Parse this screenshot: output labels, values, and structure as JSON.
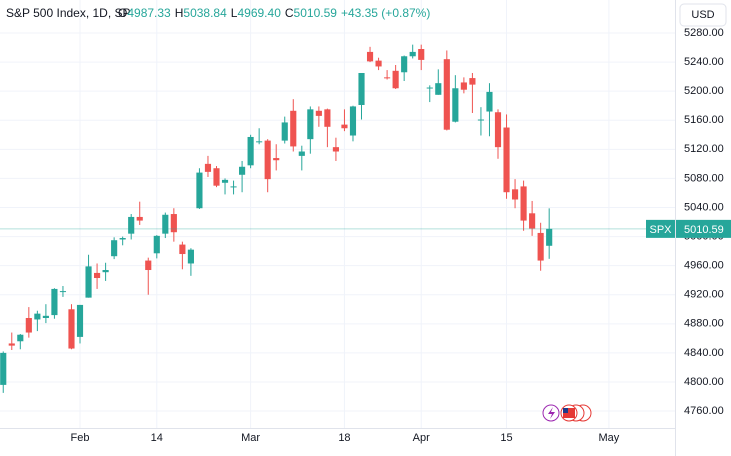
{
  "chart_data": {
    "type": "candlestick",
    "header": {
      "title": "S&P 500 Index, 1D, SP",
      "open_prefix": "O",
      "open": "4987.33",
      "high_prefix": "H",
      "high": "5038.84",
      "low_prefix": "L",
      "low": "4969.40",
      "close_prefix": "C",
      "close": "5010.59",
      "change": "+43.35 (+0.87%)"
    },
    "currency": "USD",
    "categories": [
      null,
      null,
      null,
      null,
      null,
      null,
      null,
      null,
      null,
      null,
      null,
      null,
      null,
      null,
      null,
      null,
      null,
      null,
      null,
      null,
      null,
      null,
      null,
      null,
      null,
      null,
      null,
      null,
      null,
      null,
      null,
      null,
      null,
      null,
      null,
      null,
      null,
      null,
      null,
      null,
      null,
      null,
      null,
      null,
      null,
      null,
      null,
      null,
      null,
      null,
      null,
      null,
      null,
      null,
      null,
      null,
      null,
      null,
      null,
      null,
      null,
      null,
      null,
      null,
      null
    ],
    "series": [
      {
        "name": "SPX",
        "up_color": "#26a69a",
        "down_color": "#ef5350",
        "open": [
          4796,
          4853,
          4856,
          4888,
          4886,
          4888,
          4892,
          4925,
          4900,
          4862,
          4916,
          4950,
          4951,
          4973,
          4996,
          5004,
          5027,
          4967,
          4977,
          5004,
          5031,
          4989,
          4963,
          5039,
          5100,
          5094,
          5074,
          5068,
          5085,
          5098,
          5131,
          5132,
          5108,
          5132,
          5173,
          5111,
          5134,
          5173,
          5175,
          5123,
          5154,
          5139,
          5181,
          5254,
          5242,
          5219,
          5228,
          5226,
          5248,
          5258,
          5204,
          5195,
          5244,
          5158,
          5212,
          5218,
          5160,
          5172,
          5171,
          5150,
          5065,
          5069,
          5032,
          5005,
          4987.33
        ],
        "high": [
          4842,
          4868,
          4866,
          4903,
          4898,
          4907,
          4929,
          4932,
          4907,
          4906,
          4975,
          4963,
          4964,
          4999,
          5000,
          5031,
          5048,
          4971,
          5002,
          5033,
          5039,
          4993,
          4984,
          5094,
          5111,
          5097,
          5080,
          5077,
          5104,
          5140,
          5149,
          5134,
          5127,
          5165,
          5189,
          5125,
          5179,
          5179,
          5176,
          5136,
          5175,
          5180,
          5224,
          5261,
          5246,
          5229,
          5236,
          5249,
          5264,
          5264,
          5208,
          5230,
          5256,
          5222,
          5219,
          5225,
          5178,
          5211,
          5175,
          5168,
          5079,
          5077,
          5049,
          5019,
          5038.84
        ],
        "low": [
          4785,
          4844,
          4845,
          4861,
          4870,
          4881,
          4887,
          4917,
          4845,
          4853,
          4916,
          4928,
          4939,
          4969,
          4988,
          4996,
          5016,
          4920,
          4970,
          4998,
          4993,
          4955,
          4946,
          5038,
          5082,
          5068,
          5058,
          5058,
          5061,
          5094,
          5127,
          5061,
          5091,
          5128,
          5117,
          5091,
          5114,
          5151,
          5123,
          5104,
          5145,
          5131,
          5161,
          5240,
          5229,
          5216,
          5203,
          5214,
          5245,
          5229,
          5185,
          5195,
          5146,
          5157,
          5197,
          5170,
          5139,
          5138,
          5107,
          5052,
          5039,
          5008,
          5001,
          4953,
          4969.4
        ],
        "close": [
          4840,
          4850,
          4865,
          4868,
          4894,
          4891,
          4928,
          4925,
          4846,
          4906,
          4959,
          4943,
          4954,
          4995,
          4998,
          5027,
          5022,
          4954,
          5001,
          5030,
          5006,
          4976,
          4982,
          5088,
          5089,
          5070,
          5078,
          5069,
          5096,
          5137,
          5131,
          5079,
          5105,
          5157,
          5124,
          5117,
          5175,
          5166,
          5151,
          5117,
          5149,
          5179,
          5225,
          5241,
          5234,
          5218,
          5204,
          5248,
          5254,
          5243,
          5205,
          5211,
          5147,
          5204,
          5202,
          5209,
          5161,
          5199,
          5123,
          5061,
          5051,
          5022,
          5011,
          4967,
          5010.59
        ]
      }
    ],
    "xlim": [
      -0.38,
      78.75
    ],
    "xticks": [
      {
        "value": 9,
        "label": "Feb"
      },
      {
        "value": 18,
        "label": "14"
      },
      {
        "value": 29,
        "label": "Mar"
      },
      {
        "value": 40,
        "label": "18"
      },
      {
        "value": 49,
        "label": "Apr"
      },
      {
        "value": 59,
        "label": "15"
      },
      {
        "value": 71,
        "label": "May"
      }
    ],
    "ylim": [
      4736.7,
      5325.4
    ],
    "yticks": [
      {
        "value": 4760,
        "label": "4760.00"
      },
      {
        "value": 4800,
        "label": "4800.00"
      },
      {
        "value": 4840,
        "label": "4840.00"
      },
      {
        "value": 4880,
        "label": "4880.00"
      },
      {
        "value": 4920,
        "label": "4920.00"
      },
      {
        "value": 4960,
        "label": "4960.00"
      },
      {
        "value": 5000,
        "label": "5000.00"
      },
      {
        "value": 5040,
        "label": "5040.00"
      },
      {
        "value": 5080,
        "label": "5080.00"
      },
      {
        "value": 5120,
        "label": "5120.00"
      },
      {
        "value": 5160,
        "label": "5160.00"
      },
      {
        "value": 5200,
        "label": "5200.00"
      },
      {
        "value": 5240,
        "label": "5240.00"
      },
      {
        "value": 5280,
        "label": "5280.00"
      }
    ],
    "grid": true
  }
}
